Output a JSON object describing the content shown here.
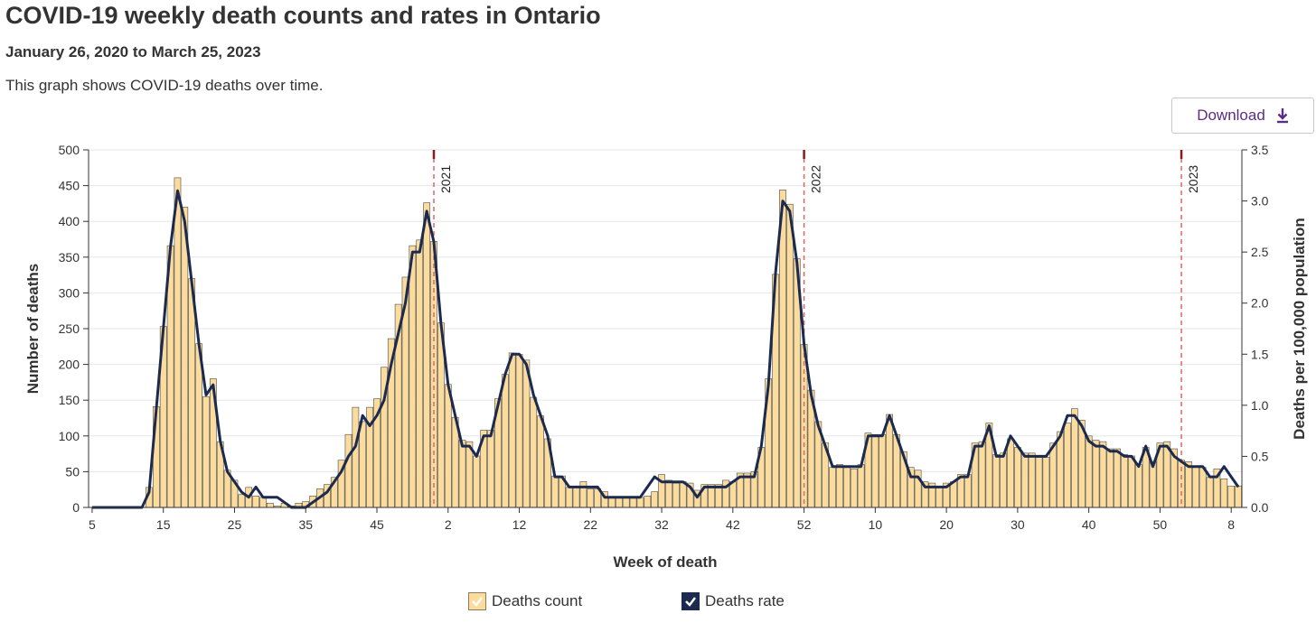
{
  "header": {
    "title": "COVID-19 weekly death counts and rates in Ontario",
    "subtitle": "January 26, 2020 to March 25, 2023",
    "description": "This graph shows COVID-19 deaths over time."
  },
  "toolbar": {
    "download_label": "Download",
    "download_icon": "download-icon"
  },
  "colors": {
    "bar_fill": "#fcdc9c",
    "bar_stroke": "#4a4a4a",
    "line": "#1b2a4e",
    "year_marker": "#e06666",
    "year_tick": "#8b1a1a",
    "grid": "#e6e6e6",
    "accent": "#5b2c83"
  },
  "chart_data": {
    "type": "bar",
    "title": "COVID-19 weekly death counts and rates in Ontario",
    "xlabel": "Week of death",
    "ylabel": "Number of deaths",
    "y2label": "Deaths per 100,000 population",
    "ylim": [
      0,
      500
    ],
    "y2lim": [
      0,
      3.5
    ],
    "yticks": [
      0,
      50,
      100,
      150,
      200,
      250,
      300,
      350,
      400,
      450,
      500
    ],
    "y2ticks": [
      "0.0",
      "0.5",
      "1.0",
      "1.5",
      "2.0",
      "2.5",
      "3.0",
      "3.5"
    ],
    "grid": true,
    "legend_position": "bottom-center",
    "x_tick_labels": [
      {
        "index": 0,
        "label": "5"
      },
      {
        "index": 10,
        "label": "15"
      },
      {
        "index": 20,
        "label": "25"
      },
      {
        "index": 30,
        "label": "35"
      },
      {
        "index": 40,
        "label": "45"
      },
      {
        "index": 50,
        "label": "2"
      },
      {
        "index": 60,
        "label": "12"
      },
      {
        "index": 70,
        "label": "22"
      },
      {
        "index": 80,
        "label": "32"
      },
      {
        "index": 90,
        "label": "42"
      },
      {
        "index": 100,
        "label": "52"
      },
      {
        "index": 110,
        "label": "10"
      },
      {
        "index": 120,
        "label": "20"
      },
      {
        "index": 130,
        "label": "30"
      },
      {
        "index": 140,
        "label": "40"
      },
      {
        "index": 150,
        "label": "50"
      },
      {
        "index": 160,
        "label": "8"
      }
    ],
    "year_markers": [
      {
        "after_index": 48.5,
        "label": "2021"
      },
      {
        "after_index": 100.5,
        "label": "2022"
      },
      {
        "after_index": 153.5,
        "label": "2023"
      }
    ],
    "series": [
      {
        "name": "Deaths count",
        "type": "bar",
        "values": [
          0,
          0,
          0,
          0,
          0,
          0,
          0,
          0,
          28,
          141,
          253,
          366,
          461,
          420,
          320,
          229,
          155,
          180,
          92,
          52,
          38,
          18,
          28,
          16,
          14,
          6,
          2,
          6,
          2,
          6,
          8,
          16,
          26,
          32,
          42,
          66,
          102,
          140,
          120,
          140,
          152,
          196,
          236,
          284,
          322,
          366,
          374,
          426,
          372,
          258,
          172,
          126,
          94,
          92,
          72,
          108,
          108,
          152,
          186,
          216,
          214,
          206,
          154,
          128,
          96,
          44,
          44,
          28,
          28,
          36,
          26,
          26,
          22,
          14,
          14,
          14,
          14,
          14,
          16,
          22,
          46,
          38,
          34,
          36,
          34,
          24,
          32,
          32,
          32,
          38,
          36,
          48,
          48,
          50,
          84,
          180,
          326,
          444,
          424,
          348,
          228,
          164,
          120,
          90,
          56,
          60,
          56,
          54,
          60,
          104,
          102,
          102,
          130,
          102,
          78,
          56,
          52,
          36,
          34,
          28,
          34,
          36,
          46,
          46,
          90,
          92,
          118,
          74,
          76,
          96,
          84,
          76,
          76,
          70,
          70,
          90,
          106,
          118,
          138,
          122,
          100,
          94,
          92,
          82,
          82,
          74,
          72,
          60,
          84,
          64,
          90,
          92,
          82,
          66,
          64,
          58,
          56,
          42,
          54,
          40,
          30,
          30
        ],
        "color": "#fcdc9c"
      },
      {
        "name": "Deaths rate",
        "type": "line",
        "values": [
          0,
          0,
          0,
          0,
          0,
          0,
          0,
          0,
          0.15,
          0.95,
          1.75,
          2.55,
          3.1,
          2.8,
          2.2,
          1.6,
          1.1,
          1.2,
          0.65,
          0.35,
          0.25,
          0.15,
          0.1,
          0.2,
          0.1,
          0.1,
          0.1,
          0.05,
          0,
          0,
          0,
          0.05,
          0.1,
          0.15,
          0.25,
          0.35,
          0.5,
          0.6,
          0.9,
          0.8,
          0.9,
          1.05,
          1.4,
          1.7,
          2.0,
          2.5,
          2.5,
          2.9,
          2.6,
          1.8,
          1.2,
          0.9,
          0.6,
          0.6,
          0.5,
          0.7,
          0.7,
          1.0,
          1.3,
          1.5,
          1.5,
          1.4,
          1.1,
          0.9,
          0.7,
          0.3,
          0.3,
          0.2,
          0.2,
          0.2,
          0.2,
          0.2,
          0.1,
          0.1,
          0.1,
          0.1,
          0.1,
          0.1,
          0.2,
          0.3,
          0.25,
          0.25,
          0.25,
          0.25,
          0.2,
          0.1,
          0.2,
          0.2,
          0.2,
          0.2,
          0.25,
          0.3,
          0.3,
          0.3,
          0.6,
          1.2,
          2.3,
          3.0,
          2.9,
          2.4,
          1.6,
          1.1,
          0.8,
          0.6,
          0.4,
          0.4,
          0.4,
          0.4,
          0.4,
          0.7,
          0.7,
          0.7,
          0.9,
          0.7,
          0.5,
          0.3,
          0.3,
          0.2,
          0.2,
          0.2,
          0.2,
          0.25,
          0.3,
          0.3,
          0.6,
          0.6,
          0.8,
          0.5,
          0.5,
          0.7,
          0.6,
          0.5,
          0.5,
          0.5,
          0.5,
          0.6,
          0.7,
          0.9,
          0.9,
          0.8,
          0.65,
          0.6,
          0.6,
          0.55,
          0.55,
          0.5,
          0.5,
          0.4,
          0.6,
          0.4,
          0.6,
          0.6,
          0.5,
          0.45,
          0.4,
          0.4,
          0.4,
          0.3,
          0.3,
          0.4,
          0.3,
          0.2
        ],
        "color": "#1b2a4e"
      }
    ]
  },
  "legend": {
    "items": [
      {
        "label": "Deaths count",
        "checked": true,
        "icon": "check-icon"
      },
      {
        "label": "Deaths rate",
        "checked": true,
        "icon": "check-icon"
      }
    ]
  }
}
